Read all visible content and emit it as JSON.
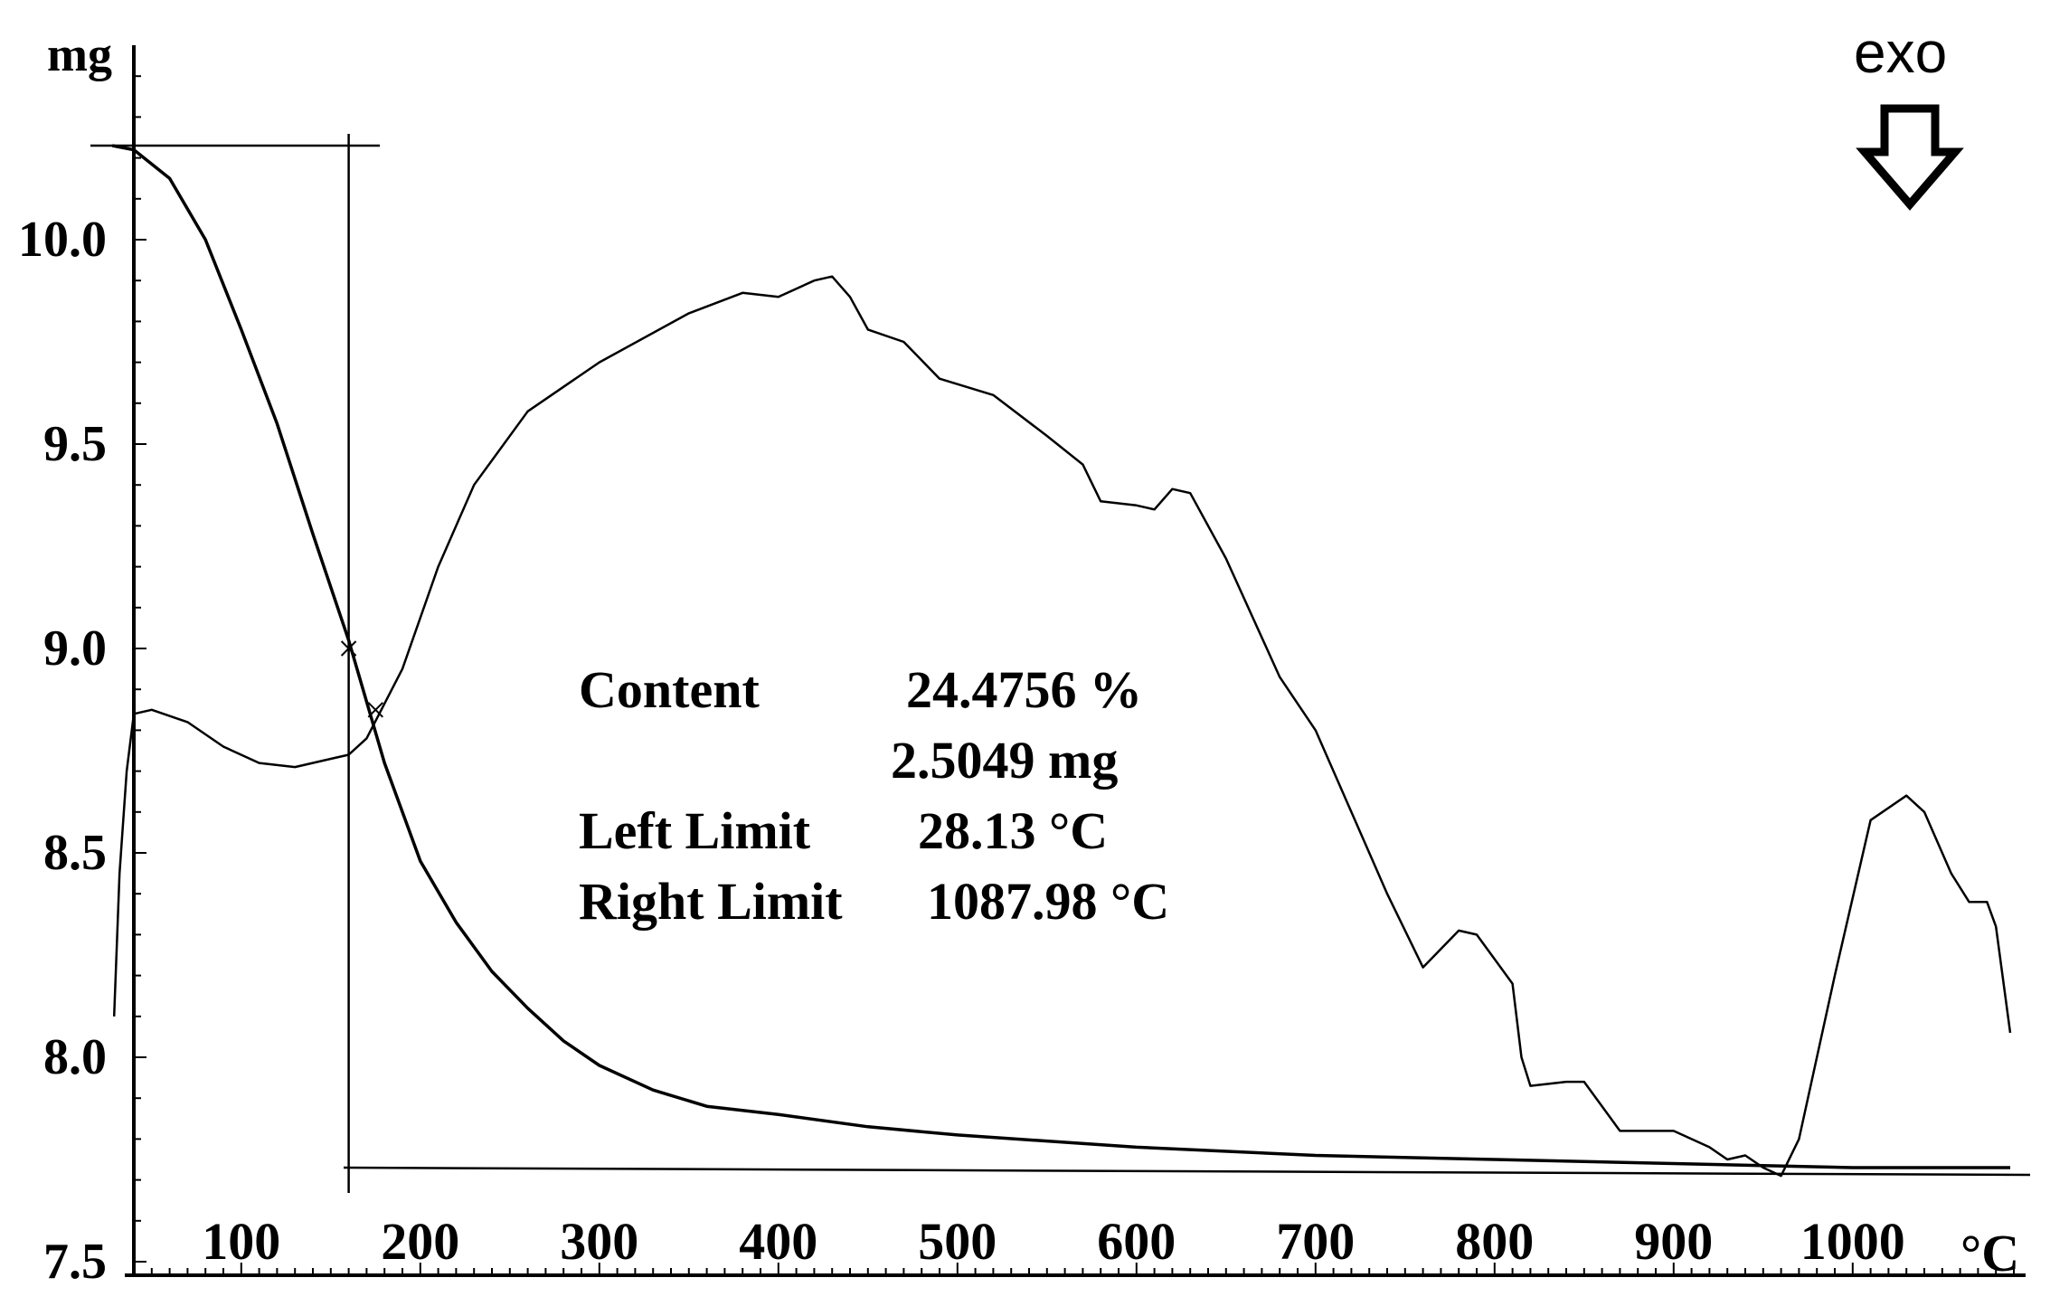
{
  "chart_data": {
    "type": "line",
    "title": "",
    "xlabel": "°C",
    "ylabel": "mg",
    "xlim": [
      40,
      1090
    ],
    "ylim": [
      7.5,
      10.6
    ],
    "x_ticks": [
      100,
      200,
      300,
      400,
      500,
      600,
      700,
      800,
      900,
      1000
    ],
    "y_ticks": [
      {
        "value": 7.5,
        "label": "7.5"
      },
      {
        "value": 8.0,
        "label": "8.0"
      },
      {
        "value": 8.5,
        "label": "8.5"
      },
      {
        "value": 9.0,
        "label": "9.0"
      },
      {
        "value": 9.5,
        "label": "9.5"
      },
      {
        "value": 10.0,
        "label": "10.0"
      }
    ],
    "x_tick_labels": [
      "100",
      "200",
      "300",
      "400",
      "500",
      "600",
      "700",
      "800",
      "900",
      "1000"
    ],
    "exo_label": "exo",
    "annotation": {
      "content_label": "Content",
      "content_percent": "24.4756 %",
      "content_mass": "2.5049 mg",
      "left_limit_label": "Left Limit",
      "left_limit_value": "28.13 °C",
      "right_limit_label": "Right Limit",
      "right_limit_value": "1087.98 °C"
    },
    "step_lines": {
      "upper_level": 10.23,
      "lower_level": 7.73,
      "step_x": 160
    },
    "series": [
      {
        "points": [
          [
            28,
            10.23
          ],
          [
            40,
            10.22
          ],
          [
            60,
            10.15
          ],
          [
            80,
            10.0
          ],
          [
            100,
            9.78
          ],
          [
            120,
            9.55
          ],
          [
            140,
            9.28
          ],
          [
            160,
            9.02
          ],
          [
            180,
            8.72
          ],
          [
            200,
            8.48
          ],
          [
            220,
            8.33
          ],
          [
            240,
            8.21
          ],
          [
            260,
            8.12
          ],
          [
            280,
            8.04
          ],
          [
            300,
            7.98
          ],
          [
            330,
            7.92
          ],
          [
            360,
            7.88
          ],
          [
            400,
            7.86
          ],
          [
            450,
            7.83
          ],
          [
            500,
            7.81
          ],
          [
            600,
            7.78
          ],
          [
            700,
            7.76
          ],
          [
            800,
            7.75
          ],
          [
            900,
            7.74
          ],
          [
            1000,
            7.73
          ],
          [
            1088,
            7.73
          ]
        ]
      },
      {
        "points": [
          [
            29,
            8.1
          ],
          [
            32,
            8.45
          ],
          [
            36,
            8.7
          ],
          [
            40,
            8.84
          ],
          [
            50,
            8.85
          ],
          [
            70,
            8.82
          ],
          [
            90,
            8.76
          ],
          [
            110,
            8.72
          ],
          [
            130,
            8.71
          ],
          [
            150,
            8.73
          ],
          [
            160,
            8.74
          ],
          [
            170,
            8.78
          ],
          [
            190,
            8.95
          ],
          [
            210,
            9.2
          ],
          [
            230,
            9.4
          ],
          [
            260,
            9.58
          ],
          [
            300,
            9.7
          ],
          [
            350,
            9.82
          ],
          [
            380,
            9.87
          ],
          [
            400,
            9.86
          ],
          [
            420,
            9.9
          ],
          [
            430,
            9.91
          ],
          [
            440,
            9.86
          ],
          [
            450,
            9.78
          ],
          [
            470,
            9.75
          ],
          [
            490,
            9.66
          ],
          [
            520,
            9.62
          ],
          [
            550,
            9.52
          ],
          [
            570,
            9.45
          ],
          [
            580,
            9.36
          ],
          [
            600,
            9.35
          ],
          [
            610,
            9.34
          ],
          [
            620,
            9.39
          ],
          [
            630,
            9.38
          ],
          [
            650,
            9.22
          ],
          [
            680,
            8.93
          ],
          [
            700,
            8.8
          ],
          [
            720,
            8.6
          ],
          [
            740,
            8.4
          ],
          [
            760,
            8.22
          ],
          [
            780,
            8.31
          ],
          [
            790,
            8.3
          ],
          [
            810,
            8.18
          ],
          [
            815,
            8.0
          ],
          [
            820,
            7.93
          ],
          [
            840,
            7.94
          ],
          [
            850,
            7.94
          ],
          [
            870,
            7.82
          ],
          [
            890,
            7.82
          ],
          [
            900,
            7.82
          ],
          [
            920,
            7.78
          ],
          [
            930,
            7.75
          ],
          [
            940,
            7.76
          ],
          [
            950,
            7.73
          ],
          [
            960,
            7.71
          ],
          [
            970,
            7.8
          ],
          [
            990,
            8.2
          ],
          [
            1010,
            8.58
          ],
          [
            1030,
            8.64
          ],
          [
            1040,
            8.6
          ],
          [
            1055,
            8.45
          ],
          [
            1065,
            8.38
          ],
          [
            1075,
            8.38
          ],
          [
            1080,
            8.32
          ],
          [
            1088,
            8.06
          ]
        ]
      }
    ]
  }
}
